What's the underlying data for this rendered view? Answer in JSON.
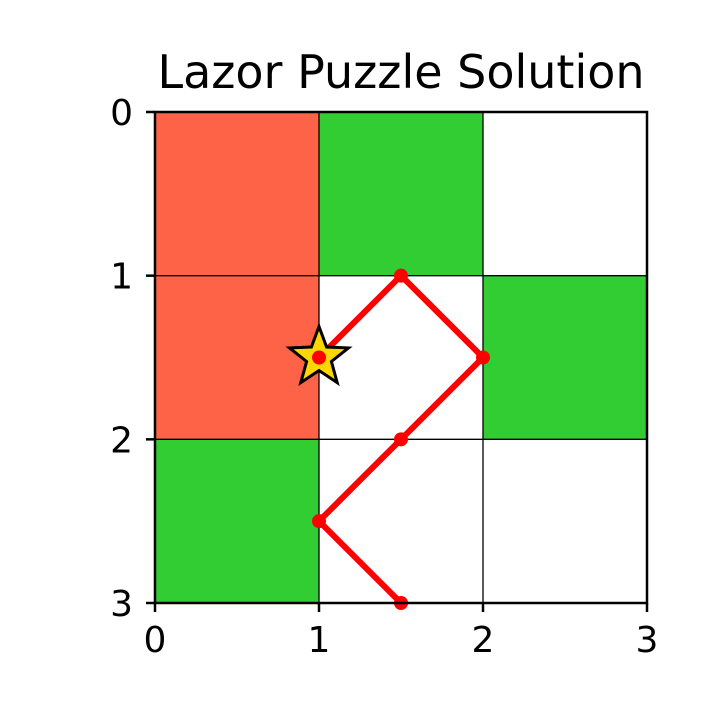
{
  "chart_data": {
    "type": "grid",
    "title": "Lazor Puzzle Solution",
    "xlim": [
      0,
      3
    ],
    "ylim": [
      3,
      0
    ],
    "y_inverted": true,
    "xticks": [
      "0",
      "1",
      "2",
      "3"
    ],
    "yticks": [
      "0",
      "1",
      "2",
      "3"
    ],
    "grid": true,
    "colors": {
      "reflect_block": "#32cd32",
      "opaque_block": "#ff6347",
      "empty": "#ffffff",
      "laser": "#ff0000",
      "target": "#ffd700"
    },
    "cells": [
      {
        "col": 0,
        "row": 0,
        "kind": "opaque_block"
      },
      {
        "col": 1,
        "row": 0,
        "kind": "reflect_block"
      },
      {
        "col": 2,
        "row": 0,
        "kind": "empty"
      },
      {
        "col": 0,
        "row": 1,
        "kind": "opaque_block"
      },
      {
        "col": 1,
        "row": 1,
        "kind": "empty"
      },
      {
        "col": 2,
        "row": 1,
        "kind": "reflect_block"
      },
      {
        "col": 0,
        "row": 2,
        "kind": "reflect_block"
      },
      {
        "col": 1,
        "row": 2,
        "kind": "empty"
      },
      {
        "col": 2,
        "row": 2,
        "kind": "empty"
      }
    ],
    "laser_path": [
      {
        "x": 1.5,
        "y": 3.0
      },
      {
        "x": 1.0,
        "y": 2.5
      },
      {
        "x": 1.5,
        "y": 2.0
      },
      {
        "x": 2.0,
        "y": 1.5
      },
      {
        "x": 1.5,
        "y": 1.0
      },
      {
        "x": 1.0,
        "y": 1.5
      }
    ],
    "target": {
      "x": 1.0,
      "y": 1.5
    }
  }
}
